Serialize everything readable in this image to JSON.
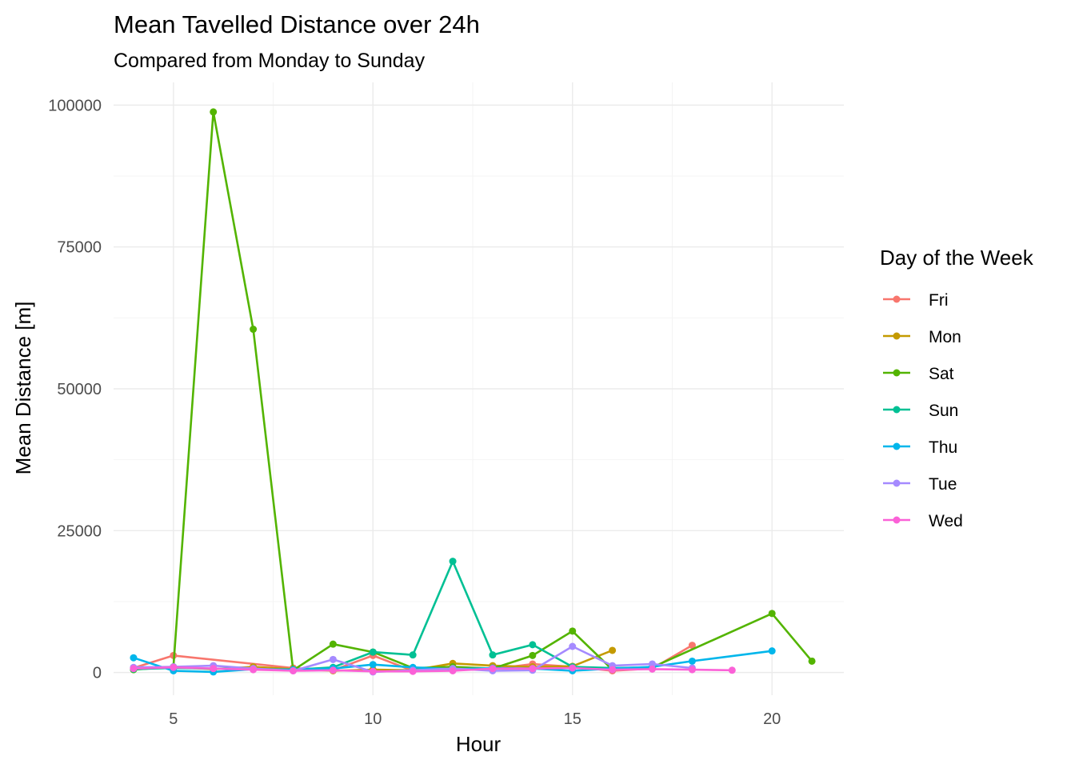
{
  "chart_data": {
    "type": "line",
    "title": "Mean Tavelled Distance over 24h",
    "subtitle": "Compared from Monday to Sunday",
    "xlabel": "Hour",
    "ylabel": "Mean Distance [m]",
    "xlim": [
      3.5,
      21.8
    ],
    "ylim": [
      -4000,
      104000
    ],
    "x_ticks": [
      5,
      10,
      15,
      20
    ],
    "y_ticks": [
      0,
      25000,
      50000,
      75000,
      100000
    ],
    "x_tick_labels": [
      "5",
      "10",
      "15",
      "20"
    ],
    "y_tick_labels": [
      "0",
      "25000",
      "50000",
      "75000",
      "100000"
    ],
    "grid": true,
    "markers": true,
    "legend": {
      "title": "Day of the Week",
      "position": "right"
    },
    "series": [
      {
        "name": "Fri",
        "color": "#F8766D",
        "points": [
          [
            4,
            800
          ],
          [
            5,
            3000
          ],
          [
            8,
            800
          ],
          [
            9,
            400
          ],
          [
            10,
            3000
          ],
          [
            11,
            300
          ],
          [
            12,
            800
          ],
          [
            13,
            600
          ],
          [
            14,
            1500
          ],
          [
            15,
            1000
          ],
          [
            16,
            300
          ],
          [
            17,
            700
          ],
          [
            18,
            4800
          ]
        ]
      },
      {
        "name": "Mon",
        "color": "#C49A00",
        "points": [
          [
            4,
            700
          ],
          [
            5,
            900
          ],
          [
            6,
            600
          ],
          [
            7,
            1000
          ],
          [
            8,
            600
          ],
          [
            9,
            300
          ],
          [
            10,
            500
          ],
          [
            11,
            400
          ],
          [
            12,
            1600
          ],
          [
            13,
            1200
          ],
          [
            14,
            1000
          ],
          [
            15,
            1100
          ],
          [
            16,
            3900
          ]
        ]
      },
      {
        "name": "Sat",
        "color": "#53B400",
        "points": [
          [
            4,
            500
          ],
          [
            5,
            1000
          ],
          [
            6,
            98800
          ],
          [
            7,
            60500
          ],
          [
            8,
            400
          ],
          [
            9,
            5000
          ],
          [
            10,
            3600
          ],
          [
            11,
            800
          ],
          [
            12,
            1000
          ],
          [
            13,
            700
          ],
          [
            14,
            3000
          ],
          [
            15,
            7300
          ],
          [
            16,
            500
          ],
          [
            17,
            900
          ],
          [
            20,
            10400
          ],
          [
            21,
            2000
          ]
        ]
      },
      {
        "name": "Sun",
        "color": "#00C094",
        "points": [
          [
            4,
            600
          ],
          [
            5,
            800
          ],
          [
            6,
            700
          ],
          [
            7,
            600
          ],
          [
            8,
            500
          ],
          [
            9,
            900
          ],
          [
            10,
            3600
          ],
          [
            11,
            3100
          ],
          [
            12,
            19600
          ],
          [
            13,
            3100
          ],
          [
            14,
            4900
          ],
          [
            15,
            1000
          ],
          [
            16,
            800
          ],
          [
            17,
            900
          ]
        ]
      },
      {
        "name": "Thu",
        "color": "#00B6EB",
        "points": [
          [
            4,
            2600
          ],
          [
            5,
            300
          ],
          [
            6,
            100
          ],
          [
            7,
            600
          ],
          [
            8,
            500
          ],
          [
            9,
            700
          ],
          [
            10,
            1400
          ],
          [
            11,
            900
          ],
          [
            12,
            600
          ],
          [
            13,
            800
          ],
          [
            14,
            700
          ],
          [
            15,
            300
          ],
          [
            16,
            700
          ],
          [
            17,
            1000
          ],
          [
            18,
            2000
          ],
          [
            20,
            3800
          ]
        ]
      },
      {
        "name": "Tue",
        "color": "#A58AFF",
        "points": [
          [
            4,
            900
          ],
          [
            5,
            1000
          ],
          [
            6,
            1200
          ],
          [
            7,
            700
          ],
          [
            8,
            300
          ],
          [
            9,
            2300
          ],
          [
            10,
            100
          ],
          [
            11,
            400
          ],
          [
            12,
            700
          ],
          [
            13,
            300
          ],
          [
            14,
            400
          ],
          [
            15,
            4600
          ],
          [
            16,
            1200
          ],
          [
            17,
            1500
          ],
          [
            18,
            800
          ]
        ]
      },
      {
        "name": "Wed",
        "color": "#FB61D7",
        "points": [
          [
            4,
            700
          ],
          [
            5,
            900
          ],
          [
            6,
            700
          ],
          [
            7,
            500
          ],
          [
            8,
            300
          ],
          [
            9,
            400
          ],
          [
            10,
            200
          ],
          [
            11,
            200
          ],
          [
            12,
            300
          ],
          [
            13,
            700
          ],
          [
            14,
            700
          ],
          [
            15,
            800
          ],
          [
            16,
            500
          ],
          [
            17,
            600
          ],
          [
            18,
            500
          ],
          [
            19,
            400
          ]
        ]
      }
    ]
  }
}
